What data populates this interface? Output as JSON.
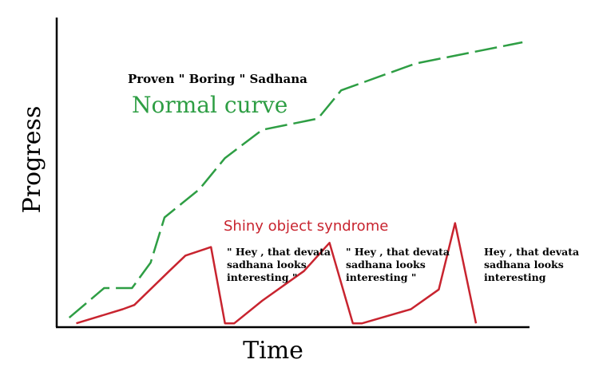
{
  "chart_data": {
    "type": "line",
    "xlabel": "Time",
    "ylabel": "Progress",
    "xlim": [
      0,
      100
    ],
    "ylim": [
      0,
      100
    ],
    "grid": false,
    "series": [
      {
        "label": "Normal curve",
        "color": "#2e9e44",
        "style": "dashed",
        "points": [
          [
            1.5,
            2.5
          ],
          [
            9,
            13
          ],
          [
            15,
            13
          ],
          [
            19,
            22
          ],
          [
            22,
            38
          ],
          [
            29.5,
            48
          ],
          [
            35,
            59
          ],
          [
            43,
            69
          ],
          [
            55,
            73
          ],
          [
            60,
            83
          ],
          [
            76,
            92.5
          ],
          [
            99,
            100
          ]
        ]
      },
      {
        "label": "Shiny object syndrome",
        "color": "#c8242f",
        "style": "solid",
        "points": [
          [
            3,
            0.5
          ],
          [
            13,
            5.5
          ],
          [
            15.5,
            7
          ],
          [
            23,
            19
          ],
          [
            26.5,
            24.5
          ],
          [
            32,
            27.5
          ],
          [
            35,
            0.5
          ],
          [
            37,
            0.5
          ],
          [
            43,
            8.5
          ],
          [
            52,
            19
          ],
          [
            57.5,
            29
          ],
          [
            62.5,
            0.5
          ],
          [
            64.5,
            0.5
          ],
          [
            75,
            5.5
          ],
          [
            81,
            12.5
          ],
          [
            84.5,
            36
          ],
          [
            89,
            0.5
          ]
        ]
      }
    ],
    "annotations": {
      "top_caption": "Proven \" Boring \" Sadhana",
      "normal_label": "Normal curve",
      "shiny_label": "Shiny object syndrome",
      "notes": [
        {
          "lines": [
            "\" Hey , that devata",
            "sadhana looks",
            "interesting \""
          ]
        },
        {
          "lines": [
            "\" Hey , that devata",
            "sadhana looks",
            "interesting \""
          ]
        },
        {
          "lines": [
            "Hey , that devata",
            "sadhana looks",
            "interesting"
          ]
        }
      ]
    }
  }
}
